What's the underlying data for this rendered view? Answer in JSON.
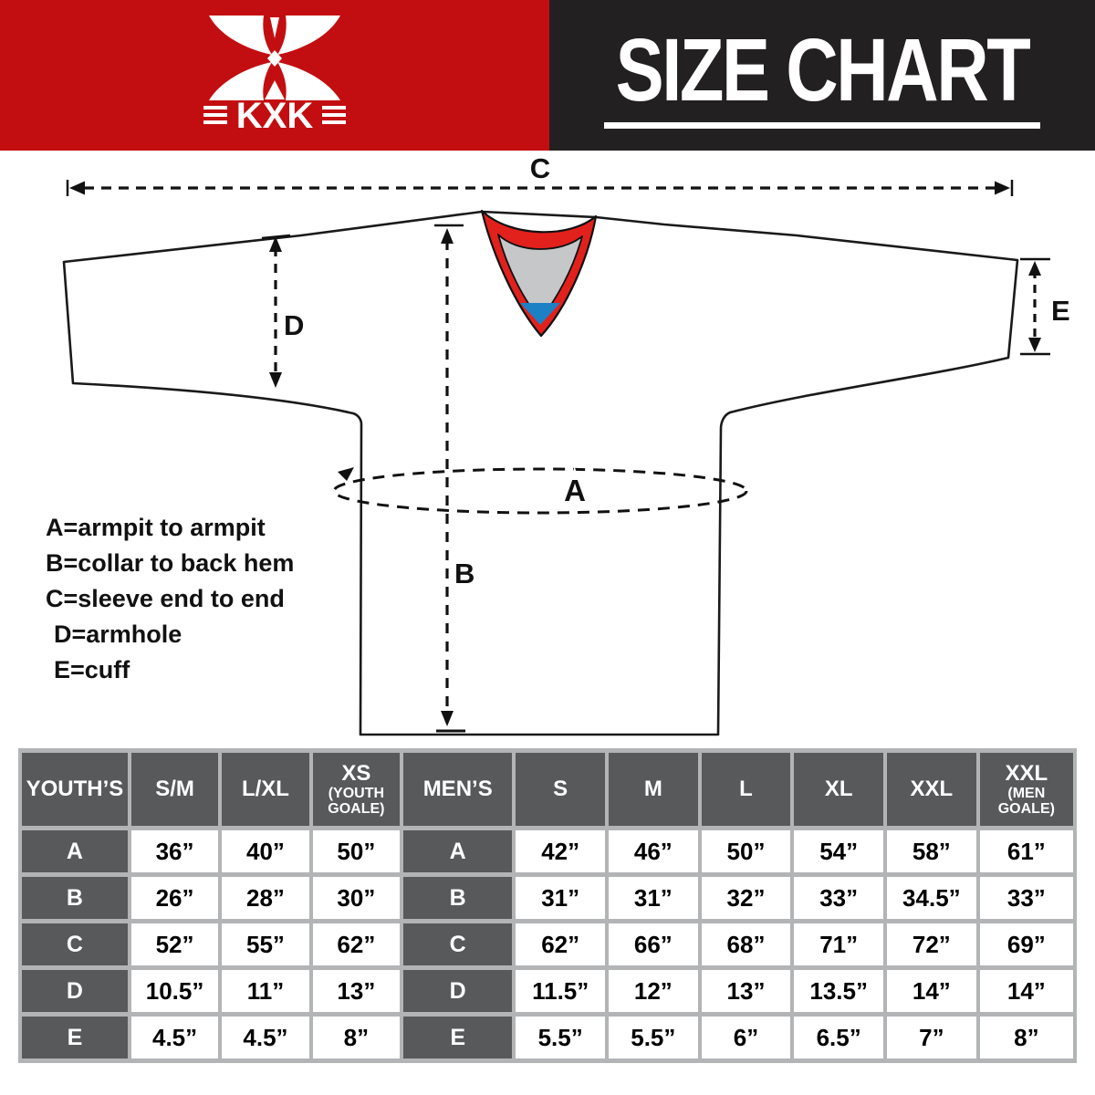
{
  "banner": {
    "brand": "KXK",
    "brand_side_mark": "≡",
    "title": "SIZE CHART"
  },
  "diagram": {
    "dimension_labels": {
      "a": "A",
      "b": "B",
      "c": "C",
      "d": "D",
      "e": "E"
    },
    "legend": [
      "A=armpit to armpit",
      "B=collar to back hem",
      "C=sleeve end to end",
      "D=armhole",
      "E=cuff"
    ]
  },
  "size_table": {
    "youth": {
      "label": "YOUTH’S",
      "columns": [
        "S/M",
        "L/XL"
      ],
      "goalie_column": {
        "size": "XS",
        "note": "(YOUTH GOALE)"
      }
    },
    "men": {
      "label": "MEN’S",
      "columns": [
        "S",
        "M",
        "L",
        "XL",
        "XXL"
      ],
      "goalie_column": {
        "size": "XXL",
        "note": "(MEN GOALE)"
      }
    },
    "rows": [
      {
        "key": "A",
        "youth": [
          "36”",
          "40”",
          "50”"
        ],
        "men": [
          "42”",
          "46”",
          "50”",
          "54”",
          "58”",
          "61”"
        ]
      },
      {
        "key": "B",
        "youth": [
          "26”",
          "28”",
          "30”"
        ],
        "men": [
          "31”",
          "31”",
          "32”",
          "33”",
          "34.5”",
          "33”"
        ]
      },
      {
        "key": "C",
        "youth": [
          "52”",
          "55”",
          "62”"
        ],
        "men": [
          "62”",
          "66”",
          "68”",
          "71”",
          "72”",
          "69”"
        ]
      },
      {
        "key": "D",
        "youth": [
          "10.5”",
          "11”",
          "13”"
        ],
        "men": [
          "11.5”",
          "12”",
          "13”",
          "13.5”",
          "14”",
          "14”"
        ]
      },
      {
        "key": "E",
        "youth": [
          "4.5”",
          "4.5”",
          "8”"
        ],
        "men": [
          "5.5”",
          "5.5”",
          "6”",
          "6.5”",
          "7”",
          "8”"
        ]
      }
    ]
  },
  "colors": {
    "brand_red": "#C30E11",
    "banner_black": "#232021",
    "table_header_gray": "#58595B",
    "table_grid_gray": "#B2B4B6",
    "collar_red": "#E2211C",
    "collar_inner_gray": "#C6C7C9",
    "collar_blue": "#1B80C4"
  }
}
